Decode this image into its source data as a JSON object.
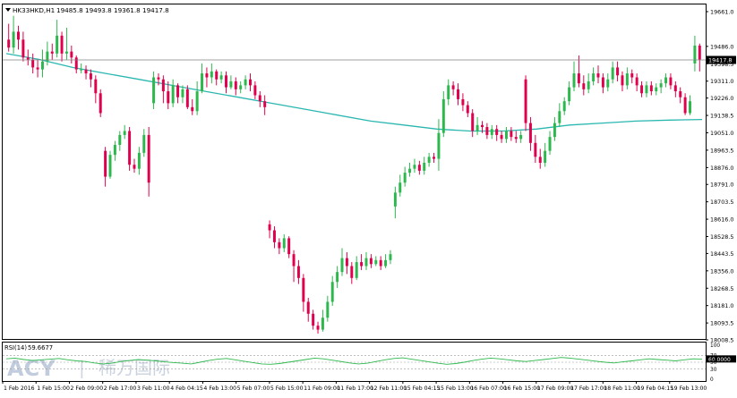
{
  "header": {
    "symbol": "HK33HKD,H1",
    "ohlc": "19485.8 19493.8 19361.8 19417.8"
  },
  "rsi_panel": {
    "title": "RSI(14)",
    "value": "59.6677",
    "value_tag": "60.0000",
    "levels": [
      "100",
      "70",
      "50",
      "30",
      "0"
    ]
  },
  "watermark": {
    "brand": "ACY",
    "separator": "|",
    "chinese": "稀万国际"
  },
  "colors": {
    "bull": "#2db84d",
    "bear": "#e0004d",
    "ma": "#2ab7b0",
    "rsi": "#2db84d",
    "price_line": "#808080",
    "axis": "#000000"
  },
  "chart_data": [
    {
      "type": "candlestick",
      "title": "",
      "ylim": [
        18008.5,
        19661.0
      ],
      "y_ticks": [
        19661.0,
        19486.0,
        19398.5,
        19311.0,
        19226.0,
        19138.5,
        19051.0,
        18963.5,
        18876.0,
        18791.0,
        18703.5,
        18616.0,
        18528.5,
        18443.5,
        18356.0,
        18268.5,
        18181.0,
        18093.5,
        18008.5
      ],
      "y_tick_labels": [
        "19661.0",
        "19486.0",
        "19398.5",
        "19311.0",
        "19226.0",
        "19138.5",
        "19051.0",
        "18963.5",
        "18876.0",
        "18791.0",
        "18703.5",
        "18616.0",
        "18528.5",
        "18443.5",
        "18356.0",
        "18268.5",
        "18181.0",
        "18093.5",
        "18008.5"
      ],
      "current_price_label": "19417.8",
      "current_price": 19417.8,
      "x_labels": [
        "1 Feb 2016",
        "1 Feb 15:00",
        "2 Feb 09:00",
        "2 Feb 17:00",
        "3 Feb 11:00",
        "4 Feb 04:15",
        "4 Feb 13:00",
        "5 Feb 07:00",
        "5 Feb 15:00",
        "11 Feb 09:00",
        "11 Feb 17:00",
        "12 Feb 11:00",
        "15 Feb 04:15",
        "15 Feb 13:00",
        "16 Feb 07:00",
        "16 Feb 15:00",
        "17 Feb 09:00",
        "17 Feb 17:00",
        "18 Feb 11:00",
        "19 Feb 04:15",
        "19 Feb 13:00"
      ],
      "candles": [
        [
          19520,
          19480,
          19600,
          19460
        ],
        [
          19480,
          19560,
          19640,
          19450
        ],
        [
          19560,
          19520,
          19590,
          19470
        ],
        [
          19520,
          19430,
          19560,
          19410
        ],
        [
          19430,
          19420,
          19470,
          19390
        ],
        [
          19420,
          19380,
          19450,
          19350
        ],
        [
          19380,
          19370,
          19420,
          19330
        ],
        [
          19370,
          19410,
          19470,
          19330
        ],
        [
          19410,
          19460,
          19510,
          19390
        ],
        [
          19460,
          19450,
          19500,
          19420
        ],
        [
          19450,
          19540,
          19620,
          19430
        ],
        [
          19540,
          19450,
          19560,
          19410
        ],
        [
          19450,
          19460,
          19580,
          19420
        ],
        [
          19460,
          19430,
          19490,
          19400
        ],
        [
          19430,
          19370,
          19440,
          19350
        ],
        [
          19370,
          19370,
          19400,
          19350
        ],
        [
          19370,
          19350,
          19390,
          19320
        ],
        [
          19350,
          19320,
          19370,
          19280
        ],
        [
          19320,
          19250,
          19340,
          19200
        ],
        [
          19250,
          19150,
          19270,
          19130
        ],
        [
          18960,
          18830,
          18980,
          18780
        ],
        [
          18830,
          18940,
          18960,
          18820
        ],
        [
          18940,
          18990,
          19010,
          18910
        ],
        [
          18990,
          19040,
          19060,
          18960
        ],
        [
          19040,
          19060,
          19090,
          19020
        ],
        [
          19060,
          18890,
          19080,
          18860
        ],
        [
          18890,
          18870,
          18920,
          18850
        ],
        [
          18870,
          18950,
          18980,
          18840
        ],
        [
          18950,
          19040,
          19070,
          18930
        ],
        [
          19040,
          18800,
          19080,
          18730
        ],
        [
          19200,
          19330,
          19360,
          19170
        ],
        [
          19330,
          19320,
          19350,
          19290
        ],
        [
          19320,
          19260,
          19340,
          19200
        ],
        [
          19260,
          19200,
          19310,
          19170
        ],
        [
          19200,
          19290,
          19320,
          19180
        ],
        [
          19290,
          19230,
          19300,
          19200
        ],
        [
          19230,
          19270,
          19290,
          19200
        ],
        [
          19270,
          19180,
          19290,
          19170
        ],
        [
          19180,
          19160,
          19220,
          19140
        ],
        [
          19160,
          19260,
          19310,
          19140
        ],
        [
          19260,
          19350,
          19400,
          19250
        ],
        [
          19350,
          19330,
          19380,
          19280
        ],
        [
          19330,
          19360,
          19400,
          19300
        ],
        [
          19360,
          19320,
          19370,
          19290
        ],
        [
          19320,
          19340,
          19360,
          19300
        ],
        [
          19340,
          19280,
          19360,
          19250
        ],
        [
          19280,
          19310,
          19340,
          19270
        ],
        [
          19310,
          19270,
          19330,
          19240
        ],
        [
          19270,
          19290,
          19310,
          19250
        ],
        [
          19290,
          19320,
          19340,
          19270
        ],
        [
          19320,
          19290,
          19350,
          19260
        ],
        [
          19290,
          19240,
          19310,
          19220
        ],
        [
          19240,
          19210,
          19260,
          19180
        ],
        [
          19210,
          19180,
          19240,
          19140
        ],
        [
          18590,
          18560,
          18610,
          18520
        ],
        [
          18560,
          18500,
          18580,
          18470
        ],
        [
          18500,
          18470,
          18520,
          18440
        ],
        [
          18470,
          18520,
          18540,
          18450
        ],
        [
          18520,
          18440,
          18530,
          18420
        ],
        [
          18440,
          18380,
          18460,
          18300
        ],
        [
          18380,
          18320,
          18410,
          18290
        ],
        [
          18320,
          18200,
          18340,
          18150
        ],
        [
          18200,
          18140,
          18220,
          18100
        ],
        [
          18140,
          18080,
          18160,
          18060
        ],
        [
          18080,
          18060,
          18100,
          18040
        ],
        [
          18060,
          18120,
          18160,
          18050
        ],
        [
          18120,
          18200,
          18230,
          18100
        ],
        [
          18200,
          18300,
          18330,
          18180
        ],
        [
          18300,
          18350,
          18380,
          18270
        ],
        [
          18350,
          18420,
          18470,
          18330
        ],
        [
          18420,
          18380,
          18450,
          18340
        ],
        [
          18380,
          18320,
          18400,
          18290
        ],
        [
          18320,
          18400,
          18430,
          18310
        ],
        [
          18400,
          18380,
          18440,
          18360
        ],
        [
          18380,
          18420,
          18450,
          18360
        ],
        [
          18420,
          18390,
          18440,
          18370
        ],
        [
          18390,
          18410,
          18430,
          18380
        ],
        [
          18410,
          18380,
          18430,
          18360
        ],
        [
          18380,
          18410,
          18440,
          18370
        ],
        [
          18410,
          18440,
          18460,
          18390
        ],
        [
          18680,
          18750,
          18780,
          18620
        ],
        [
          18750,
          18800,
          18840,
          18730
        ],
        [
          18800,
          18850,
          18880,
          18780
        ],
        [
          18850,
          18870,
          18900,
          18830
        ],
        [
          18870,
          18890,
          18920,
          18850
        ],
        [
          18890,
          18860,
          18910,
          18840
        ],
        [
          18860,
          18900,
          18930,
          18840
        ],
        [
          18900,
          18930,
          18950,
          18880
        ],
        [
          18930,
          18920,
          18950,
          18900
        ],
        [
          18920,
          19050,
          19120,
          18860
        ],
        [
          19050,
          19220,
          19260,
          19030
        ],
        [
          19220,
          19290,
          19320,
          19190
        ],
        [
          19290,
          19270,
          19310,
          19240
        ],
        [
          19270,
          19220,
          19300,
          19190
        ],
        [
          19220,
          19190,
          19250,
          19160
        ],
        [
          19190,
          19150,
          19210,
          19130
        ],
        [
          19150,
          19060,
          19170,
          19030
        ],
        [
          19060,
          19090,
          19130,
          19040
        ],
        [
          19090,
          19080,
          19110,
          19050
        ],
        [
          19080,
          19040,
          19100,
          19020
        ],
        [
          19040,
          19070,
          19090,
          19020
        ],
        [
          19070,
          19040,
          19090,
          19010
        ],
        [
          19040,
          19020,
          19060,
          19000
        ],
        [
          19020,
          19060,
          19080,
          19000
        ],
        [
          19060,
          19030,
          19080,
          19010
        ],
        [
          19030,
          19020,
          19060,
          19000
        ],
        [
          19020,
          19040,
          19060,
          19000
        ],
        [
          19320,
          19100,
          19340,
          19060
        ],
        [
          19100,
          19000,
          19130,
          18960
        ],
        [
          19000,
          18930,
          19040,
          18900
        ],
        [
          18930,
          18900,
          18970,
          18870
        ],
        [
          18900,
          18960,
          19000,
          18880
        ],
        [
          18960,
          19030,
          19060,
          18940
        ],
        [
          19030,
          19100,
          19130,
          19010
        ],
        [
          19100,
          19160,
          19200,
          19080
        ],
        [
          19160,
          19210,
          19230,
          19140
        ],
        [
          19210,
          19280,
          19310,
          19190
        ],
        [
          19280,
          19350,
          19410,
          19260
        ],
        [
          19350,
          19300,
          19440,
          19280
        ],
        [
          19300,
          19270,
          19340,
          19240
        ],
        [
          19270,
          19310,
          19350,
          19250
        ],
        [
          19310,
          19350,
          19380,
          19290
        ],
        [
          19350,
          19330,
          19390,
          19300
        ],
        [
          19330,
          19280,
          19350,
          19250
        ],
        [
          19280,
          19320,
          19350,
          19260
        ],
        [
          19320,
          19380,
          19410,
          19300
        ],
        [
          19380,
          19340,
          19410,
          19310
        ],
        [
          19340,
          19290,
          19360,
          19260
        ],
        [
          19290,
          19350,
          19380,
          19270
        ],
        [
          19350,
          19330,
          19370,
          19300
        ],
        [
          19330,
          19290,
          19350,
          19260
        ],
        [
          19290,
          19250,
          19310,
          19230
        ],
        [
          19250,
          19290,
          19310,
          19230
        ],
        [
          19290,
          19260,
          19310,
          19240
        ],
        [
          19260,
          19280,
          19300,
          19240
        ],
        [
          19280,
          19300,
          19320,
          19250
        ],
        [
          19300,
          19330,
          19350,
          19280
        ],
        [
          19330,
          19290,
          19350,
          19270
        ],
        [
          19290,
          19260,
          19310,
          19230
        ],
        [
          19260,
          19230,
          19280,
          19200
        ],
        [
          19230,
          19150,
          19250,
          19140
        ],
        [
          19150,
          19210,
          19240,
          19140
        ],
        [
          19400,
          19490,
          19540,
          19360
        ],
        [
          19490,
          19420,
          19500,
          19360
        ]
      ],
      "ma_series": [
        19450,
        19420,
        19380,
        19350,
        19320,
        19290,
        19260,
        19230,
        19200,
        19170,
        19140,
        19110,
        19090,
        19070,
        19060,
        19060,
        19070,
        19090,
        19100,
        19110,
        19115,
        19118
      ],
      "ma_label": "MA"
    },
    {
      "type": "line",
      "title": "RSI(14)",
      "ylim": [
        0,
        100
      ],
      "levels": [
        70,
        50,
        30
      ],
      "current_value": 59.6677,
      "values": [
        60,
        62,
        58,
        55,
        57,
        59,
        61,
        57,
        54,
        52,
        48,
        45,
        47,
        52,
        55,
        58,
        56,
        54,
        51,
        49,
        47,
        45,
        50,
        55,
        59,
        61,
        57,
        53,
        49,
        45,
        44,
        46,
        50,
        54,
        58,
        62,
        60,
        56,
        52,
        48,
        45,
        47,
        52,
        57,
        61,
        63,
        59,
        55,
        51,
        47,
        44,
        46,
        50,
        55,
        59,
        62,
        60,
        57,
        54,
        52,
        55,
        58,
        61,
        64,
        62,
        59,
        56,
        53,
        50,
        48,
        51,
        54,
        57,
        60,
        58,
        56,
        54,
        57,
        60,
        59
      ]
    }
  ]
}
